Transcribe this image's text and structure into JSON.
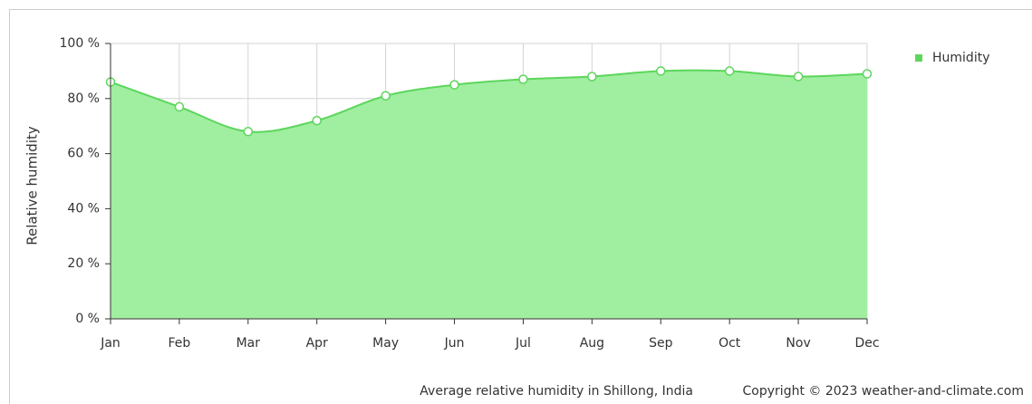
{
  "chart_data": {
    "type": "area",
    "y_label": "Relative humidity",
    "caption": "Average relative humidity in Shillong, India",
    "credit": "Copyright © 2023  weather-and-climate.com",
    "categories": [
      "Jan",
      "Feb",
      "Mar",
      "Apr",
      "May",
      "Jun",
      "Jul",
      "Aug",
      "Sep",
      "Oct",
      "Nov",
      "Dec"
    ],
    "series": [
      {
        "name": "Humidity",
        "color": "#5cd65c",
        "fill": "#a0eea0",
        "values": [
          86,
          77,
          68,
          72,
          81,
          85,
          87,
          88,
          90,
          90,
          88,
          89
        ]
      }
    ],
    "ylim": [
      0,
      100
    ],
    "yticks": [
      {
        "value": 0,
        "label": "0 %"
      },
      {
        "value": 20,
        "label": "20 %"
      },
      {
        "value": 40,
        "label": "40 %"
      },
      {
        "value": 60,
        "label": "60 %"
      },
      {
        "value": 80,
        "label": "80 %"
      },
      {
        "value": 100,
        "label": "100 %"
      }
    ],
    "grid": true,
    "legend": "top-right"
  }
}
